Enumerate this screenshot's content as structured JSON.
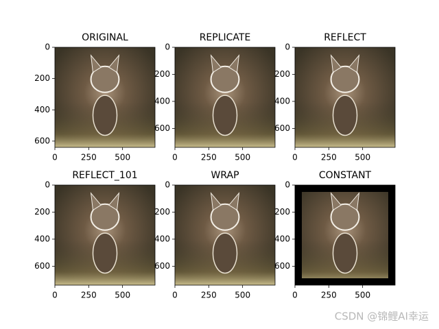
{
  "chart_data": [
    {
      "type": "image",
      "title": "ORIGINAL",
      "xlim": [
        0,
        740
      ],
      "ylim": [
        640,
        0
      ],
      "xticks": [
        0,
        250,
        500
      ],
      "yticks": [
        0,
        200,
        400,
        600
      ]
    },
    {
      "type": "image",
      "title": "REPLICATE",
      "xlim": [
        0,
        740
      ],
      "ylim": [
        740,
        0
      ],
      "xticks": [
        0,
        250,
        500
      ],
      "yticks": [
        0,
        200,
        400,
        600
      ]
    },
    {
      "type": "image",
      "title": "REFLECT",
      "xlim": [
        0,
        740
      ],
      "ylim": [
        740,
        0
      ],
      "xticks": [
        0,
        250,
        500
      ],
      "yticks": [
        0,
        200,
        400,
        600
      ]
    },
    {
      "type": "image",
      "title": "REFLECT_101",
      "xlim": [
        0,
        740
      ],
      "ylim": [
        740,
        0
      ],
      "xticks": [
        0,
        250,
        500
      ],
      "yticks": [
        0,
        200,
        400,
        600
      ]
    },
    {
      "type": "image",
      "title": "WRAP",
      "xlim": [
        0,
        740
      ],
      "ylim": [
        740,
        0
      ],
      "xticks": [
        0,
        250,
        500
      ],
      "yticks": [
        0,
        200,
        400,
        600
      ]
    },
    {
      "type": "image",
      "title": "CONSTANT",
      "xlim": [
        0,
        740
      ],
      "ylim": [
        740,
        0
      ],
      "xticks": [
        0,
        250,
        500
      ],
      "yticks": [
        0,
        200,
        400,
        600
      ]
    }
  ],
  "watermark": "CSDN @锦鲤AI幸运"
}
